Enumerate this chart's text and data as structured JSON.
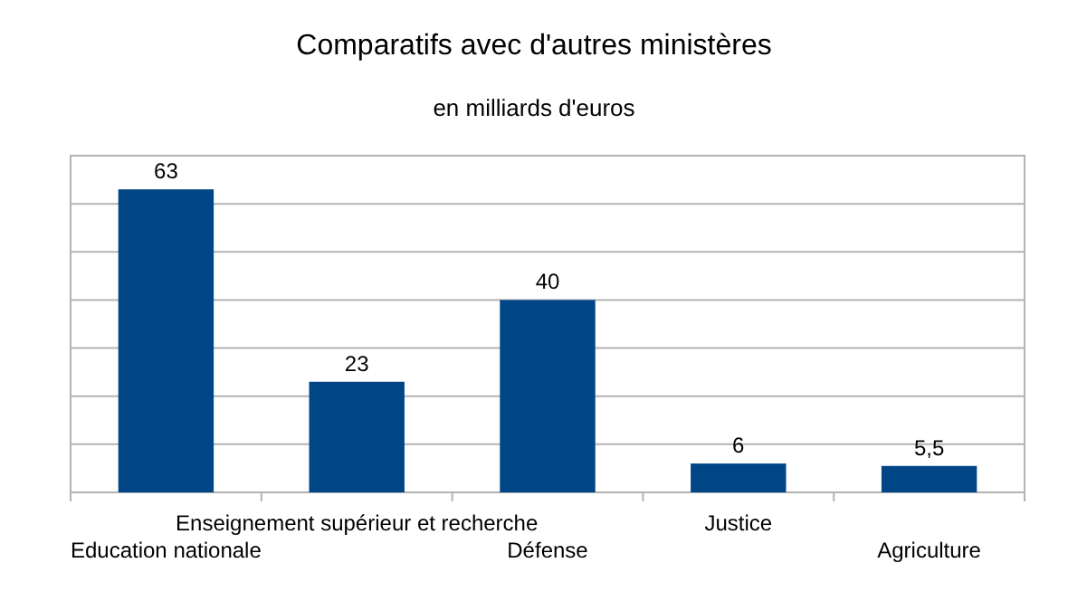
{
  "chart_data": {
    "type": "bar",
    "title": "Comparatifs avec d'autres ministères",
    "subtitle": "en milliards d'euros",
    "categories": [
      "Education nationale",
      "Enseignement supérieur et recherche",
      "Défense",
      "Justice",
      "Agriculture"
    ],
    "values": [
      63,
      23,
      40,
      6,
      5.5
    ],
    "value_labels": [
      "63",
      "23",
      "40",
      "6",
      "5,5"
    ],
    "color": "#004586",
    "ylim": [
      0,
      70
    ],
    "yticks": [
      {
        "value": 0,
        "label": null
      },
      {
        "value": 10,
        "label": null
      },
      {
        "value": 20,
        "label": null
      },
      {
        "value": 30,
        "label": null
      },
      {
        "value": 40,
        "label": null
      },
      {
        "value": 50,
        "label": null
      },
      {
        "value": 60,
        "label": null
      },
      {
        "value": 70,
        "label": null
      }
    ],
    "tick_labels": "x",
    "grid": "y"
  }
}
